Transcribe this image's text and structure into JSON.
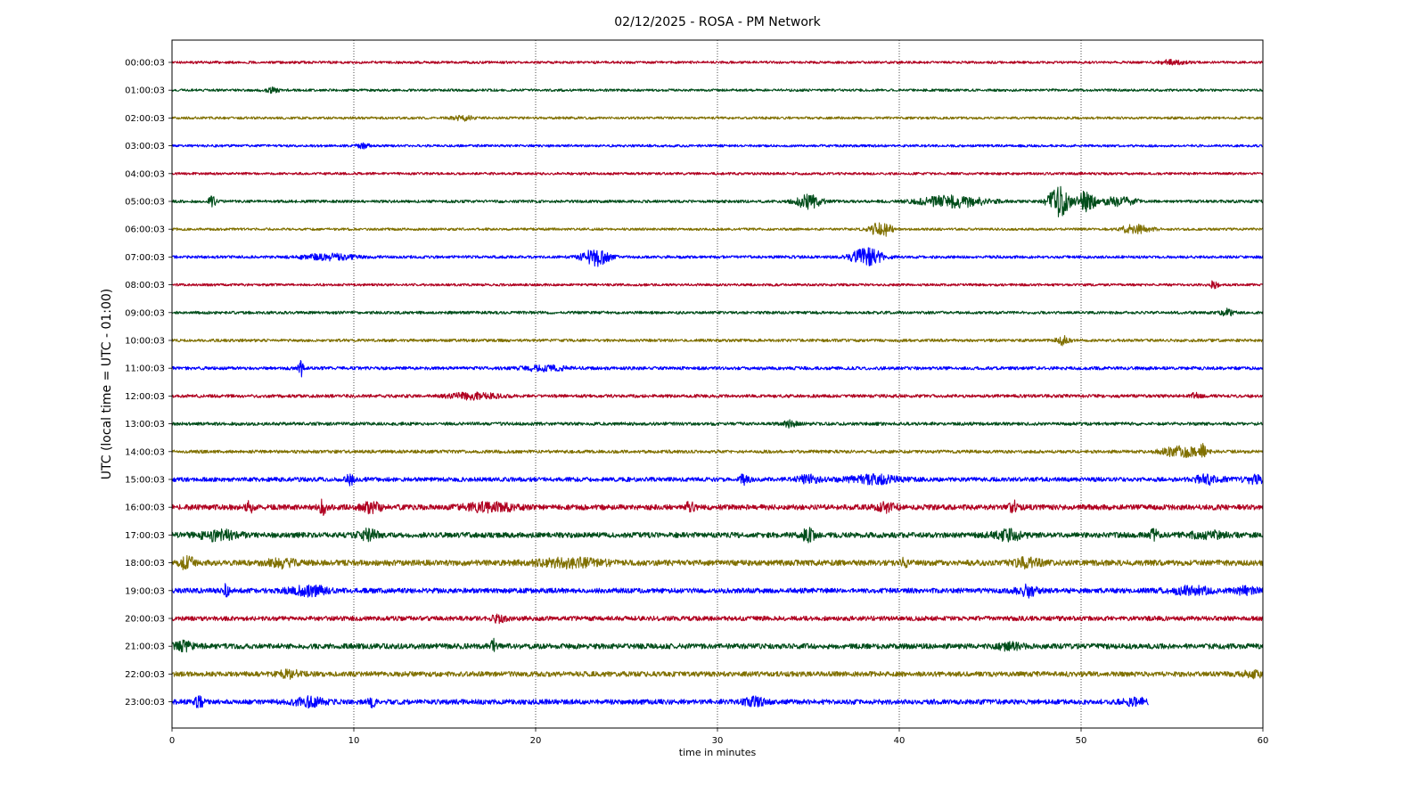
{
  "chart_data": {
    "type": "line",
    "title": "02/12/2025 - ROSA - PM Network",
    "xlabel": "time in minutes",
    "ylabel": "UTC (local time = UTC - 01:00)",
    "xlim": [
      0,
      60
    ],
    "xticks": [
      0,
      10,
      20,
      30,
      40,
      50,
      60
    ],
    "grid": "vertical dotted lines at x ticks",
    "colors": [
      "#b00020",
      "#004d1a",
      "#807000",
      "#0000ff"
    ],
    "series": [
      {
        "label": "00:00:03",
        "color": "#b00020",
        "amplitude": 0.7,
        "end_minute": 60,
        "bursts": [
          {
            "t": 55.0,
            "width": 1.0,
            "amp": 1.3
          }
        ]
      },
      {
        "label": "01:00:03",
        "color": "#004d1a",
        "amplitude": 0.7,
        "end_minute": 60,
        "bursts": [
          {
            "t": 5.5,
            "width": 0.6,
            "amp": 1.4
          }
        ]
      },
      {
        "label": "02:00:03",
        "color": "#807000",
        "amplitude": 0.7,
        "end_minute": 60,
        "bursts": [
          {
            "t": 16.0,
            "width": 0.8,
            "amp": 1.4
          }
        ]
      },
      {
        "label": "03:00:03",
        "color": "#0000ff",
        "amplitude": 0.7,
        "end_minute": 60,
        "bursts": [
          {
            "t": 10.5,
            "width": 0.5,
            "amp": 1.4
          }
        ]
      },
      {
        "label": "04:00:03",
        "color": "#b00020",
        "amplitude": 0.7,
        "end_minute": 60,
        "bursts": []
      },
      {
        "label": "05:00:03",
        "color": "#004d1a",
        "amplitude": 0.8,
        "end_minute": 60,
        "bursts": [
          {
            "t": 2.2,
            "width": 0.3,
            "amp": 3.0
          },
          {
            "t": 35.0,
            "width": 1.0,
            "amp": 4.0
          },
          {
            "t": 43.0,
            "width": 2.5,
            "amp": 3.5
          },
          {
            "t": 48.8,
            "width": 0.8,
            "amp": 9.0
          },
          {
            "t": 50.3,
            "width": 0.6,
            "amp": 7.0
          },
          {
            "t": 52.0,
            "width": 1.5,
            "amp": 2.5
          }
        ]
      },
      {
        "label": "06:00:03",
        "color": "#807000",
        "amplitude": 0.7,
        "end_minute": 60,
        "bursts": [
          {
            "t": 39.0,
            "width": 0.8,
            "amp": 4.5
          },
          {
            "t": 53.0,
            "width": 1.2,
            "amp": 2.5
          }
        ]
      },
      {
        "label": "07:00:03",
        "color": "#0000ff",
        "amplitude": 0.8,
        "end_minute": 60,
        "bursts": [
          {
            "t": 8.5,
            "width": 2.0,
            "amp": 1.8
          },
          {
            "t": 23.3,
            "width": 1.0,
            "amp": 5.0
          },
          {
            "t": 38.2,
            "width": 1.2,
            "amp": 5.0
          }
        ]
      },
      {
        "label": "08:00:03",
        "color": "#b00020",
        "amplitude": 0.7,
        "end_minute": 60,
        "bursts": [
          {
            "t": 57.3,
            "width": 0.3,
            "amp": 2.5
          }
        ]
      },
      {
        "label": "09:00:03",
        "color": "#004d1a",
        "amplitude": 0.8,
        "end_minute": 60,
        "bursts": [
          {
            "t": 58.0,
            "width": 0.5,
            "amp": 2.0
          }
        ]
      },
      {
        "label": "10:00:03",
        "color": "#807000",
        "amplitude": 0.8,
        "end_minute": 60,
        "bursts": [
          {
            "t": 49.0,
            "width": 0.5,
            "amp": 2.5
          }
        ]
      },
      {
        "label": "11:00:03",
        "color": "#0000ff",
        "amplitude": 0.9,
        "end_minute": 60,
        "bursts": [
          {
            "t": 7.1,
            "width": 0.2,
            "amp": 5.0
          },
          {
            "t": 20.5,
            "width": 1.5,
            "amp": 1.8
          }
        ]
      },
      {
        "label": "12:00:03",
        "color": "#b00020",
        "amplitude": 0.9,
        "end_minute": 60,
        "bursts": [
          {
            "t": 16.5,
            "width": 2.0,
            "amp": 1.8
          },
          {
            "t": 56.3,
            "width": 0.3,
            "amp": 2.5
          }
        ]
      },
      {
        "label": "13:00:03",
        "color": "#004d1a",
        "amplitude": 0.9,
        "end_minute": 60,
        "bursts": [
          {
            "t": 34.0,
            "width": 0.5,
            "amp": 2.0
          }
        ]
      },
      {
        "label": "14:00:03",
        "color": "#807000",
        "amplitude": 0.9,
        "end_minute": 60,
        "bursts": [
          {
            "t": 55.5,
            "width": 1.5,
            "amp": 3.0
          },
          {
            "t": 56.7,
            "width": 0.2,
            "amp": 4.0
          }
        ]
      },
      {
        "label": "15:00:03",
        "color": "#0000ff",
        "amplitude": 1.2,
        "end_minute": 60,
        "bursts": [
          {
            "t": 9.8,
            "width": 0.3,
            "amp": 3.0
          },
          {
            "t": 31.5,
            "width": 0.3,
            "amp": 4.0
          },
          {
            "t": 35.0,
            "width": 0.8,
            "amp": 2.5
          },
          {
            "t": 38.5,
            "width": 2.0,
            "amp": 2.5
          },
          {
            "t": 57.0,
            "width": 1.2,
            "amp": 2.5
          },
          {
            "t": 59.5,
            "width": 0.8,
            "amp": 2.5
          }
        ]
      },
      {
        "label": "16:00:03",
        "color": "#b00020",
        "amplitude": 1.5,
        "end_minute": 60,
        "bursts": [
          {
            "t": 4.3,
            "width": 0.3,
            "amp": 3.5
          },
          {
            "t": 8.3,
            "width": 0.3,
            "amp": 4.0
          },
          {
            "t": 11.0,
            "width": 0.8,
            "amp": 3.0
          },
          {
            "t": 17.5,
            "width": 2.0,
            "amp": 2.5
          },
          {
            "t": 28.5,
            "width": 0.3,
            "amp": 3.5
          },
          {
            "t": 39.3,
            "width": 0.8,
            "amp": 2.5
          },
          {
            "t": 46.3,
            "width": 0.3,
            "amp": 3.5
          }
        ]
      },
      {
        "label": "17:00:03",
        "color": "#004d1a",
        "amplitude": 1.5,
        "end_minute": 60,
        "bursts": [
          {
            "t": 2.5,
            "width": 1.5,
            "amp": 3.0
          },
          {
            "t": 10.8,
            "width": 0.8,
            "amp": 3.0
          },
          {
            "t": 35.0,
            "width": 0.5,
            "amp": 4.0
          },
          {
            "t": 46.0,
            "width": 1.2,
            "amp": 3.0
          },
          {
            "t": 54.0,
            "width": 0.3,
            "amp": 3.0
          },
          {
            "t": 57.0,
            "width": 1.5,
            "amp": 2.0
          }
        ]
      },
      {
        "label": "18:00:03",
        "color": "#807000",
        "amplitude": 1.6,
        "end_minute": 60,
        "bursts": [
          {
            "t": 0.8,
            "width": 0.6,
            "amp": 3.5
          },
          {
            "t": 6.0,
            "width": 1.0,
            "amp": 2.5
          },
          {
            "t": 22.0,
            "width": 2.5,
            "amp": 2.5
          },
          {
            "t": 40.3,
            "width": 0.3,
            "amp": 3.0
          },
          {
            "t": 47.0,
            "width": 1.0,
            "amp": 2.5
          }
        ]
      },
      {
        "label": "19:00:03",
        "color": "#0000ff",
        "amplitude": 1.4,
        "end_minute": 60,
        "bursts": [
          {
            "t": 3.0,
            "width": 0.2,
            "amp": 4.0
          },
          {
            "t": 7.5,
            "width": 1.5,
            "amp": 3.0
          },
          {
            "t": 47.0,
            "width": 0.8,
            "amp": 3.5
          },
          {
            "t": 56.0,
            "width": 1.5,
            "amp": 2.5
          },
          {
            "t": 59.0,
            "width": 1.0,
            "amp": 2.0
          }
        ]
      },
      {
        "label": "20:00:03",
        "color": "#b00020",
        "amplitude": 1.3,
        "end_minute": 60,
        "bursts": [
          {
            "t": 18.0,
            "width": 0.5,
            "amp": 2.5
          }
        ]
      },
      {
        "label": "21:00:03",
        "color": "#004d1a",
        "amplitude": 1.5,
        "end_minute": 60,
        "bursts": [
          {
            "t": 0.6,
            "width": 0.8,
            "amp": 2.5
          },
          {
            "t": 17.7,
            "width": 0.3,
            "amp": 3.5
          },
          {
            "t": 46.0,
            "width": 1.0,
            "amp": 2.0
          }
        ]
      },
      {
        "label": "22:00:03",
        "color": "#807000",
        "amplitude": 1.4,
        "end_minute": 60,
        "bursts": [
          {
            "t": 6.5,
            "width": 1.0,
            "amp": 2.0
          },
          {
            "t": 59.5,
            "width": 0.8,
            "amp": 2.0
          }
        ]
      },
      {
        "label": "23:00:03",
        "color": "#0000ff",
        "amplitude": 1.4,
        "end_minute": 53.7,
        "bursts": [
          {
            "t": 1.5,
            "width": 0.3,
            "amp": 3.5
          },
          {
            "t": 7.5,
            "width": 1.2,
            "amp": 2.5
          },
          {
            "t": 11.0,
            "width": 0.3,
            "amp": 3.0
          },
          {
            "t": 32.0,
            "width": 0.8,
            "amp": 2.5
          },
          {
            "t": 53.0,
            "width": 1.0,
            "amp": 2.0
          }
        ]
      }
    ]
  }
}
